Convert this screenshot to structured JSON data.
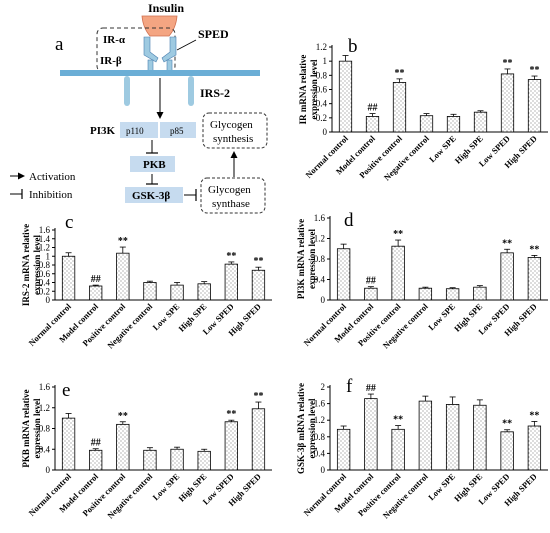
{
  "figure": {
    "panel_letters": [
      "a",
      "b",
      "c",
      "d",
      "e",
      "f"
    ]
  },
  "pathway": {
    "insulin": "Insulin",
    "ir_alpha": "IR-α",
    "ir_beta": "IR-β",
    "sped": "SPED",
    "irs2": "IRS-2",
    "pi3k": "PI3K",
    "p110": "p110",
    "p85": "p85",
    "pkb": "PKB",
    "gsk": "GSK-3β",
    "glycogen_synthesis": [
      "Glycogen",
      "synthesis"
    ],
    "glycogen_synthase": [
      "Glycogen",
      "synthase"
    ],
    "legend_activation": "Activation",
    "legend_inhibition": "Inhibition",
    "colors": {
      "insulin": "#f4a582",
      "receptor": "#9ecae1",
      "membrane": "#6baed6",
      "box": "#c6dbef"
    }
  },
  "chart_data": [
    {
      "panel": "b",
      "type": "bar",
      "categories": [
        "Normal control",
        "Model control",
        "Positive control",
        "Negative control",
        "Low SPE",
        "High SPE",
        "Low SPED",
        "High SPED"
      ],
      "values": [
        1.0,
        0.22,
        0.7,
        0.23,
        0.22,
        0.28,
        0.82,
        0.74
      ],
      "errors": [
        0.08,
        0.04,
        0.05,
        0.03,
        0.03,
        0.02,
        0.07,
        0.05
      ],
      "marks": [
        "",
        "##",
        "**",
        "",
        "",
        "",
        "**",
        "**"
      ],
      "ylabel": [
        "IR mRNA relative",
        "expression level"
      ],
      "ylim": [
        0,
        1.2
      ],
      "ticks": [
        "0",
        "0.2",
        "0.4",
        "0.6",
        "0.8",
        "1",
        "1.2"
      ]
    },
    {
      "panel": "c",
      "type": "bar",
      "categories": [
        "Normal control",
        "Model control",
        "Positive control",
        "Negative control",
        "Low SPE",
        "High SPE",
        "Low SPED",
        "High SPED"
      ],
      "values": [
        1.0,
        0.32,
        1.07,
        0.4,
        0.34,
        0.37,
        0.82,
        0.68
      ],
      "errors": [
        0.08,
        0.02,
        0.14,
        0.03,
        0.06,
        0.05,
        0.05,
        0.07
      ],
      "marks": [
        "",
        "##",
        "**",
        "",
        "",
        "",
        "**",
        "**"
      ],
      "ylabel": [
        "IRS-2 mRNA relative",
        "expression level"
      ],
      "ylim": [
        0,
        1.6
      ],
      "ticks": [
        "0",
        "0.2",
        "0.4",
        "0.6",
        "0.8",
        "1",
        "1.2",
        "1.4",
        "1.6"
      ]
    },
    {
      "panel": "d",
      "type": "bar",
      "categories": [
        "Normal control",
        "Model control",
        "Positive control",
        "Negative control",
        "Low SPE",
        "High SPE",
        "Low SPED",
        "High SPED"
      ],
      "values": [
        1.0,
        0.23,
        1.05,
        0.23,
        0.22,
        0.25,
        0.92,
        0.83
      ],
      "errors": [
        0.09,
        0.03,
        0.12,
        0.02,
        0.02,
        0.03,
        0.07,
        0.04
      ],
      "marks": [
        "",
        "##",
        "**",
        "",
        "",
        "",
        "**",
        "**"
      ],
      "ylabel": [
        "PI3K mRNA relative",
        "expression level"
      ],
      "ylim": [
        0,
        1.6
      ],
      "ticks": [
        "0",
        "0.4",
        "0.8",
        "1.2",
        "1.6"
      ]
    },
    {
      "panel": "e",
      "type": "bar",
      "categories": [
        "Normal control",
        "Model control",
        "Positive control",
        "Negative control",
        "Low SPE",
        "High SPE",
        "Low SPED",
        "High SPED"
      ],
      "values": [
        1.0,
        0.38,
        0.88,
        0.38,
        0.4,
        0.36,
        0.93,
        1.18
      ],
      "errors": [
        0.09,
        0.03,
        0.05,
        0.05,
        0.04,
        0.04,
        0.03,
        0.13
      ],
      "marks": [
        "",
        "##",
        "**",
        "",
        "",
        "",
        "**",
        "**"
      ],
      "ylabel": [
        "PKB mRNA relative",
        "expression level"
      ],
      "ylim": [
        0,
        1.6
      ],
      "ticks": [
        "0",
        "0.4",
        "0.8",
        "1.2",
        "1.6"
      ]
    },
    {
      "panel": "f",
      "type": "bar",
      "categories": [
        "Normal control",
        "Model control",
        "Positive control",
        "Negative control",
        "Low SPE",
        "High SPE",
        "Low SPED",
        "High SPED"
      ],
      "values": [
        0.98,
        1.72,
        0.98,
        1.66,
        1.58,
        1.56,
        0.92,
        1.06
      ],
      "errors": [
        0.08,
        0.11,
        0.09,
        0.12,
        0.18,
        0.13,
        0.05,
        0.11
      ],
      "marks": [
        "",
        "##",
        "**",
        "",
        "",
        "",
        "**",
        "**"
      ],
      "ylabel": [
        "GSK-3β mRNA relative",
        "expression level"
      ],
      "ylim": [
        0,
        2
      ],
      "ticks": [
        "0",
        "0.4",
        "0.8",
        "1.2",
        "1.6",
        "2"
      ]
    }
  ]
}
